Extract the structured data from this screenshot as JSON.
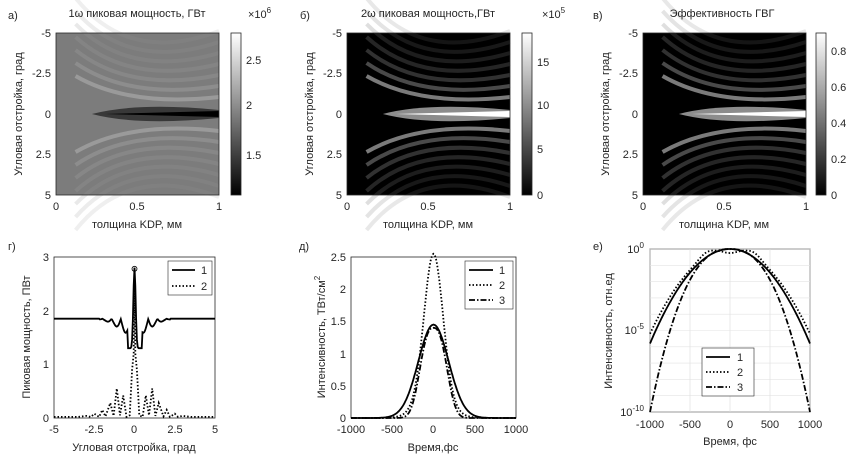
{
  "chart_data": [
    {
      "id": "a",
      "panel_label": "а)",
      "type": "heatmap",
      "title": "1ω пиковая мощность, ГВт",
      "xlabel": "толщина KDP, мм",
      "ylabel": "Угловая отстройка, град",
      "xlim": [
        0,
        1
      ],
      "ylim": [
        -5,
        5
      ],
      "y_reversed": true,
      "xticks": [
        "0",
        "0.5",
        "1"
      ],
      "yticks": [
        "-5",
        "-2.5",
        "0",
        "2.5",
        "5"
      ],
      "colorbar": {
        "min": 1.1,
        "max": 2.9,
        "ticks": [
          "1.5",
          "2",
          "2.5"
        ],
        "tick_values": [
          1.5,
          2,
          2.5
        ],
        "exponent_label": "×10",
        "exponent": "6"
      },
      "description_values": {
        "background": 1.85,
        "beam_axis_min": 1.1
      }
    },
    {
      "id": "b",
      "panel_label": "б)",
      "type": "heatmap",
      "title": "2ω пиковая мощность,ГВт",
      "xlabel": "толщина KDP, мм",
      "ylabel": "Угловая отстройка, град",
      "xlim": [
        0,
        1
      ],
      "ylim": [
        -5,
        5
      ],
      "y_reversed": true,
      "xticks": [
        "0",
        "0.5",
        "1"
      ],
      "yticks": [
        "-5",
        "-2.5",
        "0",
        "2.5",
        "5"
      ],
      "colorbar": {
        "min": 0,
        "max": 19,
        "ticks": [
          "0",
          "5",
          "10",
          "15"
        ],
        "tick_values": [
          0,
          5,
          10,
          15
        ],
        "exponent_label": "×10",
        "exponent": "5"
      },
      "description_values": {
        "beam_axis_max": 19,
        "background": 0
      }
    },
    {
      "id": "c",
      "panel_label": "в)",
      "type": "heatmap",
      "title": "Эффективность ГВГ",
      "xlabel": "толщина KDP, мм",
      "ylabel": "Угловая отстройка, град",
      "xlim": [
        0,
        1
      ],
      "ylim": [
        -5,
        5
      ],
      "y_reversed": true,
      "xticks": [
        "0",
        "0.5",
        "1"
      ],
      "yticks": [
        "-5",
        "-2.5",
        "0",
        "2.5",
        "5"
      ],
      "colorbar": {
        "min": 0,
        "max": 0.9,
        "ticks": [
          "0",
          "0.2",
          "0.4",
          "0.6",
          "0.8"
        ],
        "tick_values": [
          0,
          0.2,
          0.4,
          0.6,
          0.8
        ]
      },
      "description_values": {
        "beam_axis_max": 0.9,
        "background": 0
      }
    },
    {
      "id": "d",
      "panel_label": "г)",
      "type": "line",
      "xlabel": "Угловая отстройка, град",
      "ylabel": "Пиковая мощность, ПВт",
      "xlim": [
        -5,
        5
      ],
      "ylim": [
        0,
        3
      ],
      "xticks": [
        "-5",
        "-2.5",
        "0",
        "2.5",
        "5"
      ],
      "xtick_values": [
        -5,
        -2.5,
        0,
        2.5,
        5
      ],
      "yticks": [
        "0",
        "1",
        "2",
        "3"
      ],
      "ytick_values": [
        0,
        1,
        2,
        3
      ],
      "legend": "top-right",
      "series": [
        {
          "name": "1",
          "style": "solid",
          "x": [
            -5,
            -3,
            -2,
            -1.5,
            -1,
            -0.8,
            -0.6,
            -0.4,
            -0.25,
            -0.12,
            -0.05,
            0,
            0.05,
            0.12,
            0.25,
            0.4,
            0.6,
            0.8,
            1,
            1.5,
            2,
            3,
            5
          ],
          "y": [
            1.85,
            1.85,
            1.82,
            1.78,
            1.72,
            1.62,
            1.5,
            1.58,
            1.35,
            1.65,
            2.2,
            2.8,
            2.2,
            1.65,
            1.35,
            1.58,
            1.5,
            1.62,
            1.72,
            1.78,
            1.82,
            1.85,
            1.85
          ]
        },
        {
          "name": "2",
          "style": "dotted",
          "x": [
            -5,
            -3.5,
            -3,
            -2.7,
            -2.5,
            -2.2,
            -2,
            -1.8,
            -1.5,
            -1.3,
            -1.1,
            -0.9,
            -0.7,
            -0.5,
            -0.3,
            -0.15,
            -0.05,
            0,
            0.05,
            0.15,
            0.3,
            0.5,
            0.7,
            0.9,
            1.1,
            1.3,
            1.5,
            1.8,
            2,
            2.2,
            2.5,
            2.7,
            3,
            3.5,
            5
          ],
          "y": [
            0.02,
            0.02,
            0.04,
            0.02,
            0.08,
            0.02,
            0.15,
            0.03,
            0.28,
            0.04,
            0.55,
            0.05,
            0.42,
            0.02,
            0.05,
            0.9,
            1.2,
            2.8,
            1.2,
            0.9,
            0.05,
            0.02,
            0.42,
            0.05,
            0.55,
            0.04,
            0.28,
            0.03,
            0.15,
            0.02,
            0.08,
            0.02,
            0.04,
            0.02,
            0.02
          ]
        }
      ],
      "marker": {
        "x": 0,
        "y": 2.78
      }
    },
    {
      "id": "e",
      "panel_label": "д)",
      "type": "line",
      "xlabel": "Время,фс",
      "ylabel_main": "Интенсивность, ТВт/см",
      "ylabel_sup": "2",
      "xlim": [
        -1000,
        1000
      ],
      "ylim": [
        0,
        2.5
      ],
      "xticks": [
        "-1000",
        "-500",
        "0",
        "500",
        "1000"
      ],
      "xtick_values": [
        -1000,
        -500,
        0,
        500,
        1000
      ],
      "yticks": [
        "0",
        "0.5",
        "1",
        "1.5",
        "2",
        "2.5"
      ],
      "ytick_values": [
        0,
        0.5,
        1,
        1.5,
        2,
        2.5
      ],
      "legend": "top-right",
      "series": [
        {
          "name": "1",
          "style": "solid",
          "peak": 1.45,
          "width_fs": 260
        },
        {
          "name": "2",
          "style": "dotted",
          "peak": 2.2,
          "width_fs": 160
        },
        {
          "name": "3",
          "style": "dashdot",
          "peak": 1.4,
          "width_fs": 200
        }
      ]
    },
    {
      "id": "f",
      "panel_label": "е)",
      "type": "line",
      "xlabel": "Время, фс",
      "ylabel": "Интенсивность, отн.ед",
      "xlim": [
        -1000,
        1000
      ],
      "ylim_exponent": [
        -10,
        0
      ],
      "y_scale": "log",
      "grid": true,
      "xticks": [
        "-1000",
        "-500",
        "0",
        "500",
        "1000"
      ],
      "xtick_values": [
        -1000,
        -500,
        0,
        500,
        1000
      ],
      "yticks": [
        {
          "base": "10",
          "exp": "-10",
          "value": -10
        },
        {
          "base": "10",
          "exp": "-5",
          "value": -5
        },
        {
          "base": "10",
          "exp": "0",
          "value": 0
        }
      ],
      "legend": "center",
      "series": [
        {
          "name": "1",
          "style": "solid",
          "model": "gaussian",
          "log10_at_1000fs": -5.8
        },
        {
          "name": "2",
          "style": "dotted",
          "model": "gaussian_shoulder",
          "log10_at_1000fs": -5.2
        },
        {
          "name": "3",
          "style": "dashdot",
          "model": "supergaussian",
          "log10_at_1000fs": -10
        }
      ]
    }
  ]
}
